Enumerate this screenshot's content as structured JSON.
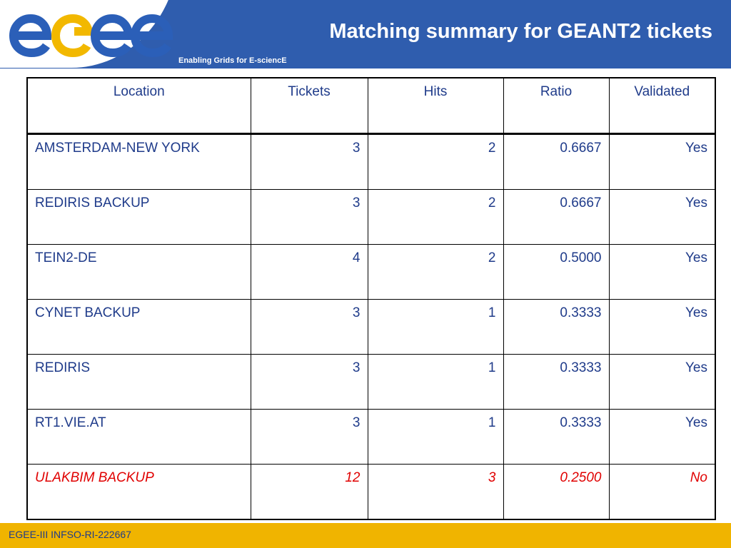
{
  "header": {
    "logo_text": "egee",
    "title": "Matching summary for GEANT2 tickets",
    "tagline": "Enabling Grids for E-sciencE"
  },
  "table": {
    "columns": [
      "Location",
      "Tickets",
      "Hits",
      "Ratio",
      "Validated"
    ],
    "rows": [
      {
        "location": "AMSTERDAM-NEW YORK",
        "tickets": "3",
        "hits": "2",
        "ratio": "0.6667",
        "validated": "Yes"
      },
      {
        "location": "REDIRIS BACKUP",
        "tickets": "3",
        "hits": "2",
        "ratio": "0.6667",
        "validated": "Yes"
      },
      {
        "location": "TEIN2-DE",
        "tickets": "4",
        "hits": "2",
        "ratio": "0.5000",
        "validated": "Yes"
      },
      {
        "location": "CYNET BACKUP",
        "tickets": "3",
        "hits": "1",
        "ratio": "0.3333",
        "validated": "Yes"
      },
      {
        "location": "REDIRIS",
        "tickets": "3",
        "hits": "1",
        "ratio": "0.3333",
        "validated": "Yes"
      },
      {
        "location": "RT1.VIE.AT",
        "tickets": "3",
        "hits": "1",
        "ratio": "0.3333",
        "validated": "Yes"
      },
      {
        "location": "ULAKBIM BACKUP",
        "tickets": "12",
        "hits": "3",
        "ratio": "0.2500",
        "validated": "No"
      }
    ]
  },
  "footer": {
    "text": "EGEE-III INFSO-RI-222667"
  },
  "colors": {
    "header_blue": "#2f5dae",
    "text_blue": "#1f3b8a",
    "highlight_red": "#e00000",
    "footer_gold": "#f0b400",
    "logo_blue": "#2b5fb8",
    "logo_yellow": "#f2b800"
  }
}
